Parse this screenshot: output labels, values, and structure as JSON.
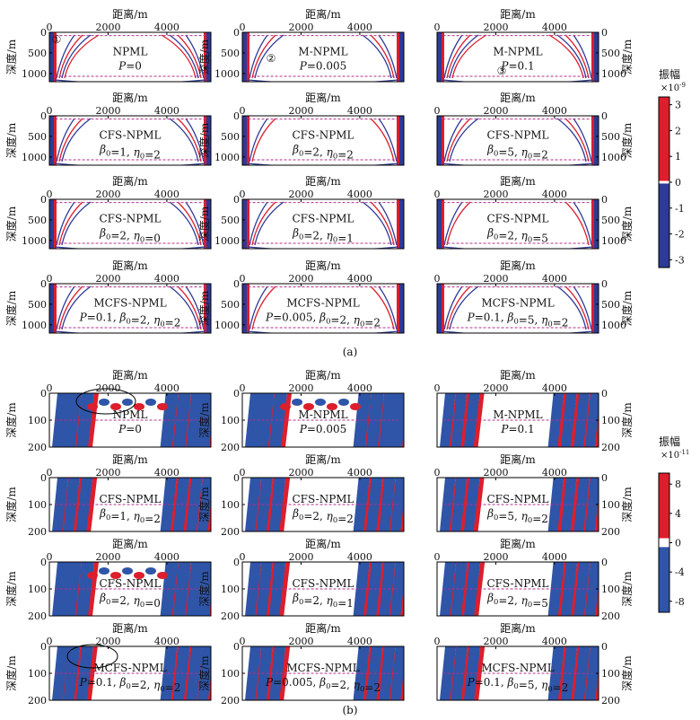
{
  "chart_data": {
    "type": "heatmap",
    "title": "",
    "xlabel": "距离/m",
    "ylabel": "深度/m",
    "colors": {
      "positive": "#dd1e2c",
      "negative": "#2d3a96",
      "negative_b": "#2f55a8",
      "pml_line": "#b0308a",
      "frame": "#000000"
    },
    "panel_sets": [
      {
        "caption": "(a)",
        "colorbar": {
          "label": "振幅",
          "exponent_text": "×10",
          "exponent": "-9",
          "ticks": [
            "3",
            "2",
            "1",
            "0",
            "-1",
            "-2",
            "-3"
          ],
          "range": [
            -3.3,
            3.3
          ],
          "white_band": [
            -0.05,
            0.05
          ]
        },
        "x_ticks": [
          "0",
          "2000",
          "4000"
        ],
        "x_range": [
          0,
          5500
        ],
        "y_ticks": [
          "0",
          "500",
          "1000"
        ],
        "y_range": [
          0,
          1200
        ],
        "pml_top_depth": 80,
        "pml_bottom_depth": 1070,
        "panels": [
          {
            "method": "NPML",
            "params": "P=0",
            "wavefront_strength": 0.9
          },
          {
            "method": "M-NPML",
            "params": "P=0.005",
            "wavefront_strength": 0.8
          },
          {
            "method": "M-NPML",
            "params": "P=0.1",
            "wavefront_strength": 0.9
          },
          {
            "method": "CFS-NPML",
            "params": "β0=1, η0=2",
            "wavefront_strength": 0.6
          },
          {
            "method": "CFS-NPML",
            "params": "β0=2, η0=2",
            "wavefront_strength": 0.3
          },
          {
            "method": "CFS-NPML",
            "params": "β0=5, η0=2",
            "wavefront_strength": 0.5
          },
          {
            "method": "CFS-NPML",
            "params": "β0=2, η0=0",
            "wavefront_strength": 0.6
          },
          {
            "method": "CFS-NPML",
            "params": "β0=2, η0=1",
            "wavefront_strength": 0.5
          },
          {
            "method": "CFS-NPML",
            "params": "β0=2, η0=5",
            "wavefront_strength": 0.3
          },
          {
            "method": "MCFS-NPML",
            "params": "P=0.1, β0=2, η0=2",
            "wavefront_strength": 0.8
          },
          {
            "method": "MCFS-NPML",
            "params": "P=0.005, β0=2, η0=2",
            "wavefront_strength": 0.4
          },
          {
            "method": "MCFS-NPML",
            "params": "P=0.1, β0=5, η0=2",
            "wavefront_strength": 0.8
          }
        ],
        "markers": [
          {
            "panel": 0,
            "label": "①"
          },
          {
            "panel": 1,
            "label": "②"
          },
          {
            "panel": 2,
            "label": "③"
          }
        ]
      },
      {
        "caption": "(b)",
        "colorbar": {
          "label": "振幅",
          "exponent_text": "×10",
          "exponent": "-11",
          "ticks": [
            "8",
            "4",
            "0",
            "-4",
            "-8"
          ],
          "range": [
            -9.5,
            9.5
          ],
          "white_band": [
            -0.6,
            0.6
          ]
        },
        "x_ticks": [
          "0",
          "2000",
          "4000"
        ],
        "x_range": [
          0,
          5500
        ],
        "y_ticks": [
          "0",
          "100",
          "200"
        ],
        "y_range": [
          0,
          200
        ],
        "pml_top_depth": 0,
        "pml_bottom_depth": 100,
        "panels": [
          {
            "method": "NPML",
            "params": "P=0",
            "wavefront_strength": 1.0
          },
          {
            "method": "M-NPML",
            "params": "P=0.005",
            "wavefront_strength": 1.0
          },
          {
            "method": "M-NPML",
            "params": "P=0.1",
            "wavefront_strength": 0.6
          },
          {
            "method": "CFS-NPML",
            "params": "β0=1, η0=2",
            "wavefront_strength": 0.7
          },
          {
            "method": "CFS-NPML",
            "params": "β0=2, η0=2",
            "wavefront_strength": 0.7
          },
          {
            "method": "CFS-NPML",
            "params": "β0=5, η0=2",
            "wavefront_strength": 0.6
          },
          {
            "method": "CFS-NPML",
            "params": "β0=2, η0=0",
            "wavefront_strength": 1.0
          },
          {
            "method": "CFS-NPML",
            "params": "β0=2, η0=1",
            "wavefront_strength": 0.7
          },
          {
            "method": "CFS-NPML",
            "params": "β0=2, η0=5",
            "wavefront_strength": 0.7
          },
          {
            "method": "MCFS-NPML",
            "params": "P=0.1, β0=2, η0=2",
            "wavefront_strength": 0.8
          },
          {
            "method": "MCFS-NPML",
            "params": "P=0.005, β0=2, η0=2",
            "wavefront_strength": 0.7
          },
          {
            "method": "MCFS-NPML",
            "params": "P=0.1, β0=5, η0=2",
            "wavefront_strength": 0.7
          }
        ],
        "markers": []
      }
    ]
  }
}
